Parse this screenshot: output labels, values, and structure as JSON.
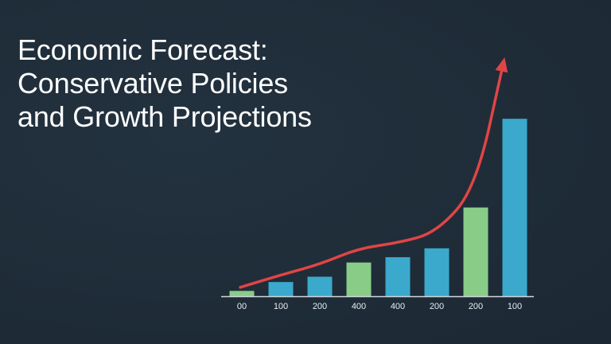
{
  "slide": {
    "title_lines": [
      "Economic Forecast:",
      "Conservative Policies",
      "and Growth Projections"
    ]
  },
  "colors": {
    "background": "#1f2d3a",
    "bar_green": "#88cc88",
    "bar_blue": "#3aa9cc",
    "trend_line": "#e04545",
    "axis": "#d0d6dc"
  },
  "chart_data": {
    "type": "bar",
    "title": "Economic Forecast: Conservative Policies and Growth Projections",
    "categories": [
      "00",
      "100",
      "200",
      "400",
      "400",
      "200",
      "200",
      "100"
    ],
    "values": [
      3,
      8,
      11,
      19,
      22,
      27,
      50,
      100
    ],
    "bar_colors": [
      "green",
      "blue",
      "blue",
      "green",
      "blue",
      "blue",
      "green",
      "blue"
    ],
    "trend_line": {
      "values": [
        5,
        12,
        18,
        27,
        30,
        36,
        61,
        132
      ],
      "arrow": true
    },
    "xlabel": "",
    "ylabel": "",
    "ylim": [
      0,
      140
    ],
    "grid": false,
    "legend": "none"
  }
}
